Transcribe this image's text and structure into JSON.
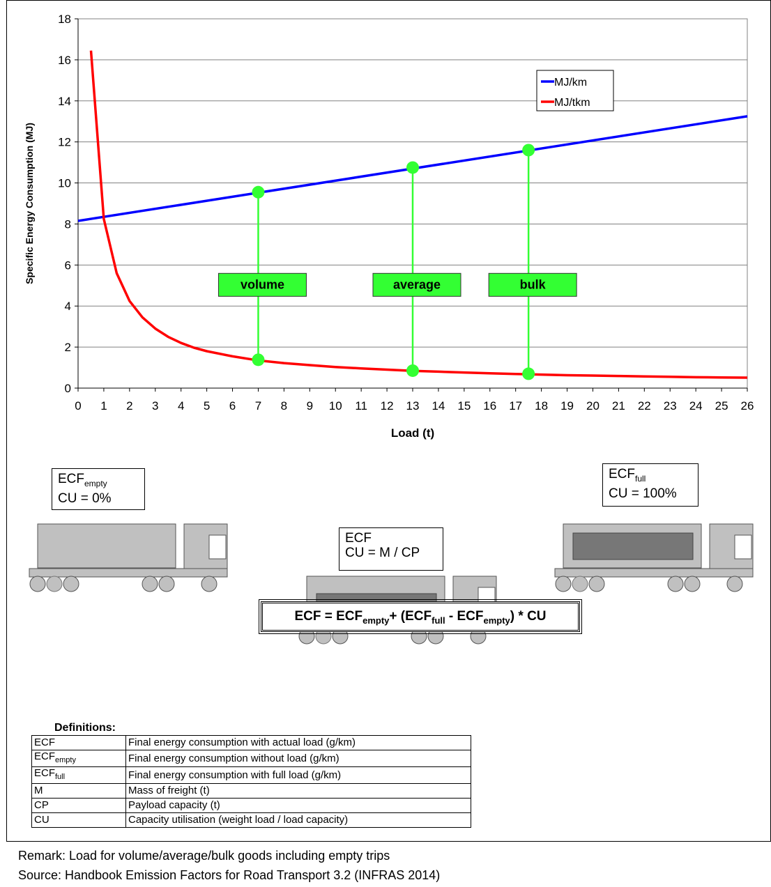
{
  "chart_data": {
    "type": "line",
    "xlabel": "Load (t)",
    "ylabel": "Specific Energy Consumption (MJ)",
    "xlim": [
      0,
      26
    ],
    "ylim": [
      0,
      18
    ],
    "x_ticks": [
      0,
      1,
      2,
      3,
      4,
      5,
      6,
      7,
      8,
      9,
      10,
      11,
      12,
      13,
      14,
      15,
      16,
      17,
      18,
      19,
      20,
      21,
      22,
      23,
      24,
      25,
      26
    ],
    "y_ticks": [
      0,
      2,
      4,
      6,
      8,
      10,
      12,
      14,
      16,
      18
    ],
    "grid": "horizontal",
    "legend_position": "top-right",
    "series": [
      {
        "name": "MJ/km",
        "color": "#0000ff",
        "x": [
          0,
          26
        ],
        "y": [
          8.15,
          13.25
        ]
      },
      {
        "name": "MJ/tkm",
        "color": "#ff0000",
        "x": [
          0.5,
          1,
          1.5,
          2,
          2.5,
          3,
          3.5,
          4,
          4.5,
          5,
          6,
          7,
          8,
          9,
          10,
          11,
          12,
          13,
          14,
          15,
          16,
          17,
          18,
          19,
          20,
          21,
          22,
          23,
          24,
          25,
          26
        ],
        "y": [
          16.45,
          8.25,
          5.6,
          4.25,
          3.45,
          2.9,
          2.5,
          2.2,
          1.97,
          1.8,
          1.55,
          1.35,
          1.22,
          1.12,
          1.03,
          0.96,
          0.9,
          0.84,
          0.8,
          0.76,
          0.72,
          0.69,
          0.66,
          0.63,
          0.61,
          0.59,
          0.57,
          0.55,
          0.53,
          0.52,
          0.51
        ]
      }
    ],
    "markers": [
      {
        "label": "volume",
        "x": 7,
        "y_top": 9.55,
        "y_bottom": 1.38
      },
      {
        "label": "average",
        "x": 13,
        "y_top": 10.75,
        "y_bottom": 0.85
      },
      {
        "label": "bulk",
        "x": 17.5,
        "y_top": 11.6,
        "y_bottom": 0.7
      }
    ],
    "marker_color": "#33ff33"
  },
  "trucks": {
    "empty": {
      "ecf": "ECF",
      "ecf_sub": "empty",
      "cu": "CU = 0%"
    },
    "middle": {
      "ecf": "ECF",
      "cu": "CU = M / CP"
    },
    "full": {
      "ecf": "ECF",
      "ecf_sub": "full",
      "cu": "CU = 100%"
    }
  },
  "formula": {
    "p1": "ECF = ECF",
    "s1": "empty",
    "p2": "+ (ECF",
    "s2": "full",
    "p3": " - ECF",
    "s3": "empty",
    "p4": ") * CU"
  },
  "definitions": {
    "title": "Definitions:",
    "rows": [
      {
        "key": "ECF",
        "sub": "",
        "value": "Final energy consumption with actual load (g/km)"
      },
      {
        "key": "ECF",
        "sub": "empty",
        "value": "Final energy consumption without load (g/km)"
      },
      {
        "key": "ECF",
        "sub": "full",
        "value": "Final energy consumption with full load (g/km)"
      },
      {
        "key": "M",
        "sub": "",
        "value": "Mass of freight (t)"
      },
      {
        "key": "CP",
        "sub": "",
        "value": "Payload capacity (t)"
      },
      {
        "key": "CU",
        "sub": "",
        "value": "Capacity utilisation (weight load / load capacity)"
      }
    ]
  },
  "remark": "Remark: Load for volume/average/bulk goods including empty trips",
  "source": "Source: Handbook Emission Factors for Road Transport 3.2 (INFRAS 2014)"
}
